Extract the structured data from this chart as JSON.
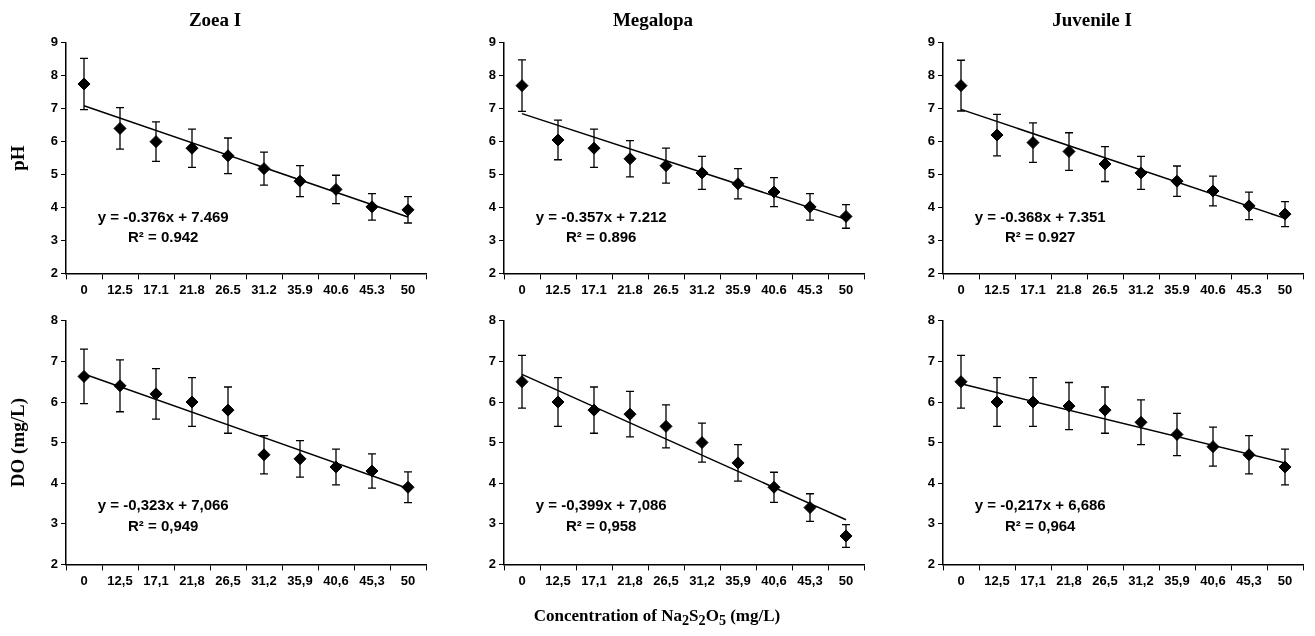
{
  "chart_data": [
    {
      "type": "scatter",
      "title": "Zoea I",
      "ylabel": "pH",
      "categories": [
        "0",
        "12.5",
        "17.1",
        "21.8",
        "26.5",
        "31.2",
        "35.9",
        "40.6",
        "45.3",
        "50"
      ],
      "ylim": [
        2,
        9
      ],
      "yticks": [
        2,
        3,
        4,
        5,
        6,
        7,
        8,
        9
      ],
      "grid": false,
      "legend": false,
      "series": [
        {
          "color": "#000000",
          "marker": "diamond",
          "values": [
            7.75,
            6.4,
            6.0,
            5.8,
            5.57,
            5.18,
            4.8,
            4.55,
            4.02,
            3.93
          ],
          "errors": [
            0.78,
            0.63,
            0.6,
            0.58,
            0.54,
            0.5,
            0.47,
            0.43,
            0.4,
            0.4
          ]
        },
        {
          "type": "line",
          "color": "#000000",
          "marker": "none",
          "x": [
            "0",
            "50"
          ],
          "values": [
            7.09,
            3.71
          ]
        }
      ],
      "annotations": [
        "y = -0.376x + 7.469",
        "R² = 0.942"
      ]
    },
    {
      "type": "scatter",
      "title": "Megalopa",
      "categories": [
        "0",
        "12.5",
        "17.1",
        "21.8",
        "26.5",
        "31.2",
        "35.9",
        "40.6",
        "45.3",
        "50"
      ],
      "ylim": [
        2,
        9
      ],
      "yticks": [
        2,
        3,
        4,
        5,
        6,
        7,
        8,
        9
      ],
      "grid": false,
      "legend": false,
      "series": [
        {
          "color": "#000000",
          "marker": "diamond",
          "values": [
            7.7,
            6.05,
            5.8,
            5.48,
            5.27,
            5.05,
            4.72,
            4.47,
            4.02,
            3.73
          ],
          "errors": [
            0.78,
            0.6,
            0.58,
            0.55,
            0.53,
            0.5,
            0.46,
            0.44,
            0.4,
            0.36
          ]
        },
        {
          "type": "line",
          "color": "#000000",
          "marker": "none",
          "x": [
            "0",
            "50"
          ],
          "values": [
            6.85,
            3.64
          ]
        }
      ],
      "annotations": [
        "y = -0.357x + 7.212",
        "R² = 0.896"
      ]
    },
    {
      "type": "scatter",
      "title": "Juvenile I",
      "categories": [
        "0",
        "12.5",
        "17.1",
        "21.8",
        "26.5",
        "31.2",
        "35.9",
        "40.6",
        "45.3",
        "50"
      ],
      "ylim": [
        2,
        9
      ],
      "yticks": [
        2,
        3,
        4,
        5,
        6,
        7,
        8,
        9
      ],
      "grid": false,
      "legend": false,
      "series": [
        {
          "color": "#000000",
          "marker": "diamond",
          "values": [
            7.7,
            6.2,
            5.97,
            5.7,
            5.32,
            5.05,
            4.8,
            4.5,
            4.05,
            3.8
          ],
          "errors": [
            0.77,
            0.63,
            0.6,
            0.57,
            0.53,
            0.5,
            0.46,
            0.45,
            0.42,
            0.38
          ]
        },
        {
          "type": "line",
          "color": "#000000",
          "marker": "none",
          "x": [
            "0",
            "50"
          ],
          "values": [
            6.98,
            3.67
          ]
        }
      ],
      "annotations": [
        "y = -0.368x + 7.351",
        "R² = 0.927"
      ]
    },
    {
      "type": "scatter",
      "ylabel": "DO (mg/L)",
      "categories": [
        "0",
        "12,5",
        "17,1",
        "21,8",
        "26,5",
        "31,2",
        "35,9",
        "40,6",
        "45,3",
        "50"
      ],
      "ylim": [
        2,
        8
      ],
      "yticks": [
        2,
        3,
        4,
        5,
        6,
        7,
        8
      ],
      "grid": false,
      "legend": false,
      "series": [
        {
          "color": "#000000",
          "marker": "diamond",
          "values": [
            6.63,
            6.4,
            6.2,
            6.0,
            5.8,
            4.7,
            4.6,
            4.4,
            4.3,
            3.9
          ],
          "errors": [
            0.67,
            0.64,
            0.62,
            0.6,
            0.57,
            0.47,
            0.45,
            0.44,
            0.42,
            0.38
          ]
        },
        {
          "type": "line",
          "color": "#000000",
          "marker": "none",
          "x": [
            "0",
            "50"
          ],
          "values": [
            6.69,
            3.87
          ]
        }
      ],
      "annotations": [
        "y = -0,323x + 7,066",
        "R² = 0,949"
      ]
    },
    {
      "type": "scatter",
      "xlabel": "Concentration of  Na$_{2}$S$_{2}$O$_{5}$ (mg/L)",
      "categories": [
        "0",
        "12,5",
        "17,1",
        "21,8",
        "26,5",
        "31,2",
        "35,9",
        "40,6",
        "45,3",
        "50"
      ],
      "ylim": [
        2,
        8
      ],
      "yticks": [
        2,
        3,
        4,
        5,
        6,
        7,
        8
      ],
      "grid": false,
      "legend": false,
      "series": [
        {
          "color": "#000000",
          "marker": "diamond",
          "values": [
            6.5,
            6.0,
            5.8,
            5.7,
            5.4,
            5.0,
            4.5,
            3.9,
            3.4,
            2.7
          ],
          "errors": [
            0.65,
            0.6,
            0.57,
            0.56,
            0.53,
            0.48,
            0.45,
            0.37,
            0.34,
            0.28
          ]
        },
        {
          "type": "line",
          "color": "#000000",
          "marker": "none",
          "x": [
            "0",
            "50"
          ],
          "values": [
            6.68,
            3.1
          ]
        }
      ],
      "annotations": [
        "y = -0,399x + 7,086",
        "R² = 0,958"
      ]
    },
    {
      "type": "scatter",
      "categories": [
        "0",
        "12,5",
        "17,1",
        "21,8",
        "26,5",
        "31,2",
        "35,9",
        "40,6",
        "45,3",
        "50"
      ],
      "ylim": [
        2,
        8
      ],
      "yticks": [
        2,
        3,
        4,
        5,
        6,
        7,
        8
      ],
      "grid": false,
      "legend": false,
      "series": [
        {
          "color": "#000000",
          "marker": "diamond",
          "values": [
            6.5,
            6.0,
            6.0,
            5.9,
            5.8,
            5.5,
            5.2,
            4.9,
            4.7,
            4.4
          ],
          "errors": [
            0.65,
            0.6,
            0.6,
            0.58,
            0.57,
            0.55,
            0.52,
            0.48,
            0.47,
            0.44
          ]
        },
        {
          "type": "line",
          "color": "#000000",
          "marker": "none",
          "x": [
            "0",
            "50"
          ],
          "values": [
            6.45,
            4.5
          ]
        }
      ],
      "annotations": [
        "y = -0,217x + 6,686",
        "R² = 0,964"
      ]
    }
  ]
}
